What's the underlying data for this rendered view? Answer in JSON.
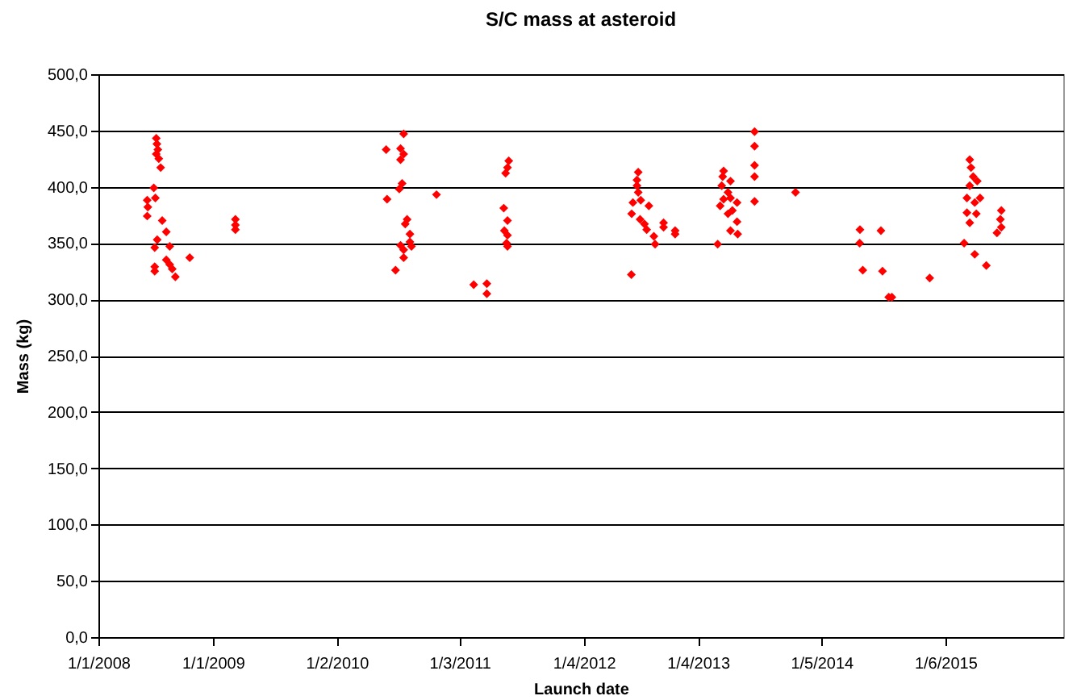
{
  "chart_data": {
    "type": "scatter",
    "title": "S/C mass at asteroid",
    "xlabel": "Launch date",
    "ylabel": "Mass (kg)",
    "marker": "diamond",
    "grid": "y",
    "xlim": [
      "2008-01-01",
      "2016-06-12"
    ],
    "xticks": [
      {
        "value": "2008-01-01",
        "label": "1/1/2008"
      },
      {
        "value": "2009-01-01",
        "label": "1/1/2009"
      },
      {
        "value": "2010-02-01",
        "label": "1/2/2010"
      },
      {
        "value": "2011-03-01",
        "label": "1/3/2011"
      },
      {
        "value": "2012-04-01",
        "label": "1/4/2012"
      },
      {
        "value": "2013-04-01",
        "label": "1/4/2013"
      },
      {
        "value": "2014-05-01",
        "label": "1/5/2014"
      },
      {
        "value": "2015-06-01",
        "label": "1/6/2015"
      }
    ],
    "ylim": [
      0,
      500
    ],
    "yticks": [
      {
        "value": 0,
        "label": "0,0"
      },
      {
        "value": 50,
        "label": "50,0"
      },
      {
        "value": 100,
        "label": "100,0"
      },
      {
        "value": 150,
        "label": "150,0"
      },
      {
        "value": 200,
        "label": "200,0"
      },
      {
        "value": 250,
        "label": "250,0"
      },
      {
        "value": 300,
        "label": "300,0"
      },
      {
        "value": 350,
        "label": "350,0"
      },
      {
        "value": 400,
        "label": "400,0"
      },
      {
        "value": 450,
        "label": "450,0"
      },
      {
        "value": 500,
        "label": "500,0"
      }
    ],
    "series": [
      {
        "color": "#ff0000",
        "x": [
          "2008-07-04",
          "2008-07-06",
          "2008-07-09",
          "2008-07-04",
          "2008-07-12",
          "2008-07-18",
          "2008-06-26",
          "2008-07-01",
          "2008-06-05",
          "2008-06-07",
          "2008-06-05",
          "2008-07-23",
          "2008-08-05",
          "2008-07-07",
          "2008-06-29",
          "2008-08-16",
          "2008-10-19",
          "2008-06-29",
          "2008-06-29",
          "2008-08-05",
          "2008-08-16",
          "2008-08-24",
          "2008-09-03",
          "2009-03-14",
          "2009-03-14",
          "2009-03-14",
          "2010-07-09",
          "2010-09-03",
          "2010-08-24",
          "2010-09-03",
          "2010-08-24",
          "2010-08-29",
          "2010-08-20",
          "2010-07-12",
          "2010-12-17",
          "2010-09-14",
          "2010-09-08",
          "2010-09-23",
          "2010-09-23",
          "2010-08-24",
          "2010-09-03",
          "2010-09-28",
          "2010-09-03",
          "2010-08-08",
          "2011-04-15",
          "2011-05-27",
          "2011-05-27",
          "2011-08-05",
          "2011-08-01",
          "2011-07-26",
          "2011-07-20",
          "2011-08-01",
          "2011-07-22",
          "2011-08-01",
          "2011-07-29",
          "2011-08-01",
          "2012-09-22",
          "2012-09-18",
          "2012-09-18",
          "2012-09-22",
          "2012-09-05",
          "2012-09-30",
          "2012-10-26",
          "2012-09-01",
          "2012-09-28",
          "2012-10-12",
          "2012-10-19",
          "2012-11-11",
          "2012-11-15",
          "2012-12-12",
          "2012-12-12",
          "2013-01-18",
          "2013-01-18",
          "2012-08-31",
          "2013-06-22",
          "2013-06-19",
          "2013-06-16",
          "2013-07-14",
          "2013-07-06",
          "2013-06-22",
          "2013-06-11",
          "2013-07-14",
          "2013-08-04",
          "2013-07-20",
          "2013-07-06",
          "2013-08-04",
          "2013-07-14",
          "2013-08-06",
          "2013-06-03",
          "2013-09-29",
          "2013-09-29",
          "2013-09-29",
          "2013-09-29",
          "2013-09-29",
          "2014-02-07",
          "2014-09-01",
          "2014-08-31",
          "2014-09-10",
          "2014-11-07",
          "2014-11-12",
          "2014-12-02",
          "2014-12-12",
          "2015-04-12",
          "2015-08-18",
          "2015-08-22",
          "2015-08-29",
          "2015-09-11",
          "2015-08-18",
          "2015-08-09",
          "2015-09-20",
          "2015-09-03",
          "2015-08-09",
          "2015-09-08",
          "2015-08-18",
          "2015-07-31",
          "2015-09-03",
          "2015-10-10",
          "2015-11-27",
          "2015-11-24",
          "2015-11-27",
          "2015-11-13"
        ],
        "values": [
          443,
          438,
          433,
          429,
          425,
          417,
          399,
          390,
          388,
          382,
          374,
          370,
          360,
          353,
          346,
          347,
          337,
          329,
          325,
          335,
          331,
          327,
          320,
          371,
          366,
          362,
          433,
          447,
          434,
          429,
          424,
          403,
          398,
          389,
          393,
          371,
          367,
          358,
          351,
          348,
          344,
          347,
          337,
          326,
          313,
          314,
          305,
          423,
          417,
          412,
          381,
          370,
          361,
          357,
          350,
          347,
          413,
          406,
          401,
          395,
          386,
          388,
          383,
          376,
          371,
          367,
          362,
          356,
          349,
          368,
          364,
          361,
          358,
          322,
          414,
          409,
          401,
          405,
          395,
          389,
          383,
          390,
          386,
          379,
          376,
          369,
          361,
          358,
          349,
          449,
          436,
          419,
          409,
          387,
          395,
          362,
          350,
          326,
          361,
          325,
          302,
          302,
          319,
          424,
          417,
          409,
          405,
          401,
          390,
          390,
          386,
          377,
          376,
          368,
          350,
          340,
          330,
          379,
          371,
          364,
          359
        ]
      }
    ]
  }
}
